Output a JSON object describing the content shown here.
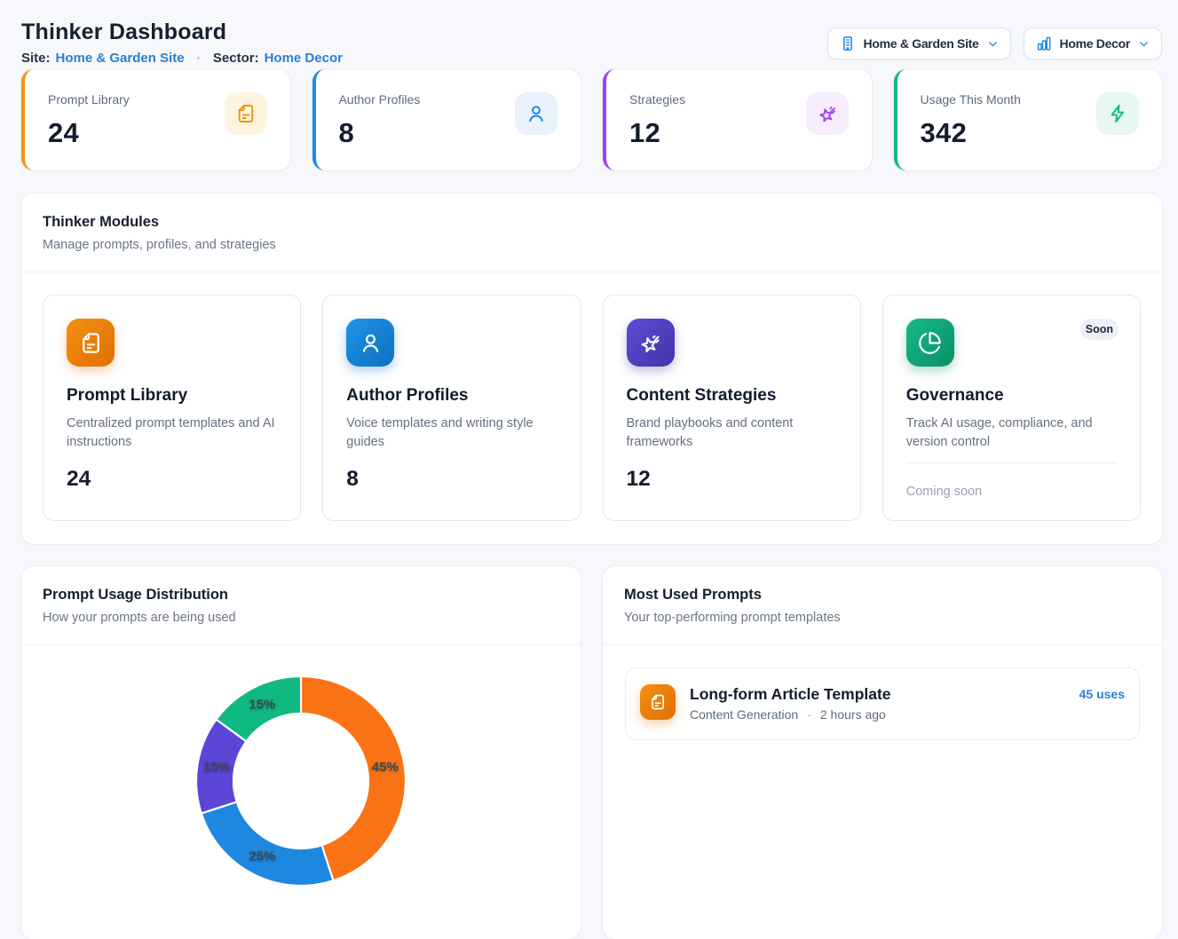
{
  "header": {
    "title": "Thinker Dashboard",
    "site_label": "Site:",
    "site_value": "Home & Garden Site",
    "separator": "·",
    "sector_label": "Sector:",
    "sector_value": "Home Decor"
  },
  "toolbar": {
    "site_dropdown_label": "Home & Garden Site",
    "sector_dropdown_label": "Home Decor"
  },
  "stats": [
    {
      "label": "Prompt Library",
      "value": "24",
      "icon": "file-text-icon",
      "accent": "#f6930d"
    },
    {
      "label": "Author Profiles",
      "value": "8",
      "icon": "user-icon",
      "accent": "#1b8ce6"
    },
    {
      "label": "Strategies",
      "value": "12",
      "icon": "star-burst-icon",
      "accent": "#a43ff0"
    },
    {
      "label": "Usage This Month",
      "value": "342",
      "icon": "zap-icon",
      "accent": "#10b981"
    }
  ],
  "modules": {
    "title": "Thinker Modules",
    "subtitle": "Manage prompts, profiles, and strategies",
    "cards": [
      {
        "title": "Prompt Library",
        "description": "Centralized prompt templates and AI instructions",
        "count": "24",
        "icon": "file-text-icon"
      },
      {
        "title": "Author Profiles",
        "description": "Voice templates and writing style guides",
        "count": "8",
        "icon": "user-icon"
      },
      {
        "title": "Content Strategies",
        "description": "Brand playbooks and content frameworks",
        "count": "12",
        "icon": "star-burst-icon"
      },
      {
        "title": "Governance",
        "description": "Track AI usage, compliance, and version control",
        "badge": "Soon",
        "footer": "Coming soon",
        "icon": "pie-chart-icon"
      }
    ]
  },
  "usage_chart": {
    "title": "Prompt Usage Distribution",
    "subtitle": "How your prompts are being used"
  },
  "chart_data": {
    "type": "pie",
    "donut": true,
    "start_angle": "top",
    "direction": "clockwise",
    "inner_radius": 76,
    "outer_radius": 118,
    "label_format": "percent",
    "visible_label": "15%",
    "segments": [
      {
        "name": "orange-segment",
        "value": 45,
        "color": "#f97316"
      },
      {
        "name": "blue-segment",
        "value": 25,
        "color": "#1e88e0"
      },
      {
        "name": "violet-segment",
        "value": 15,
        "color": "#5b46d8"
      },
      {
        "name": "green-segment",
        "value": 15,
        "color": "#10b981"
      }
    ]
  },
  "most_used": {
    "title": "Most Used Prompts",
    "subtitle": "Your top-performing prompt templates",
    "items": [
      {
        "title": "Long-form Article Template",
        "category": "Content Generation",
        "separator": "·",
        "time": "2 hours ago",
        "uses": "45 uses"
      }
    ]
  }
}
